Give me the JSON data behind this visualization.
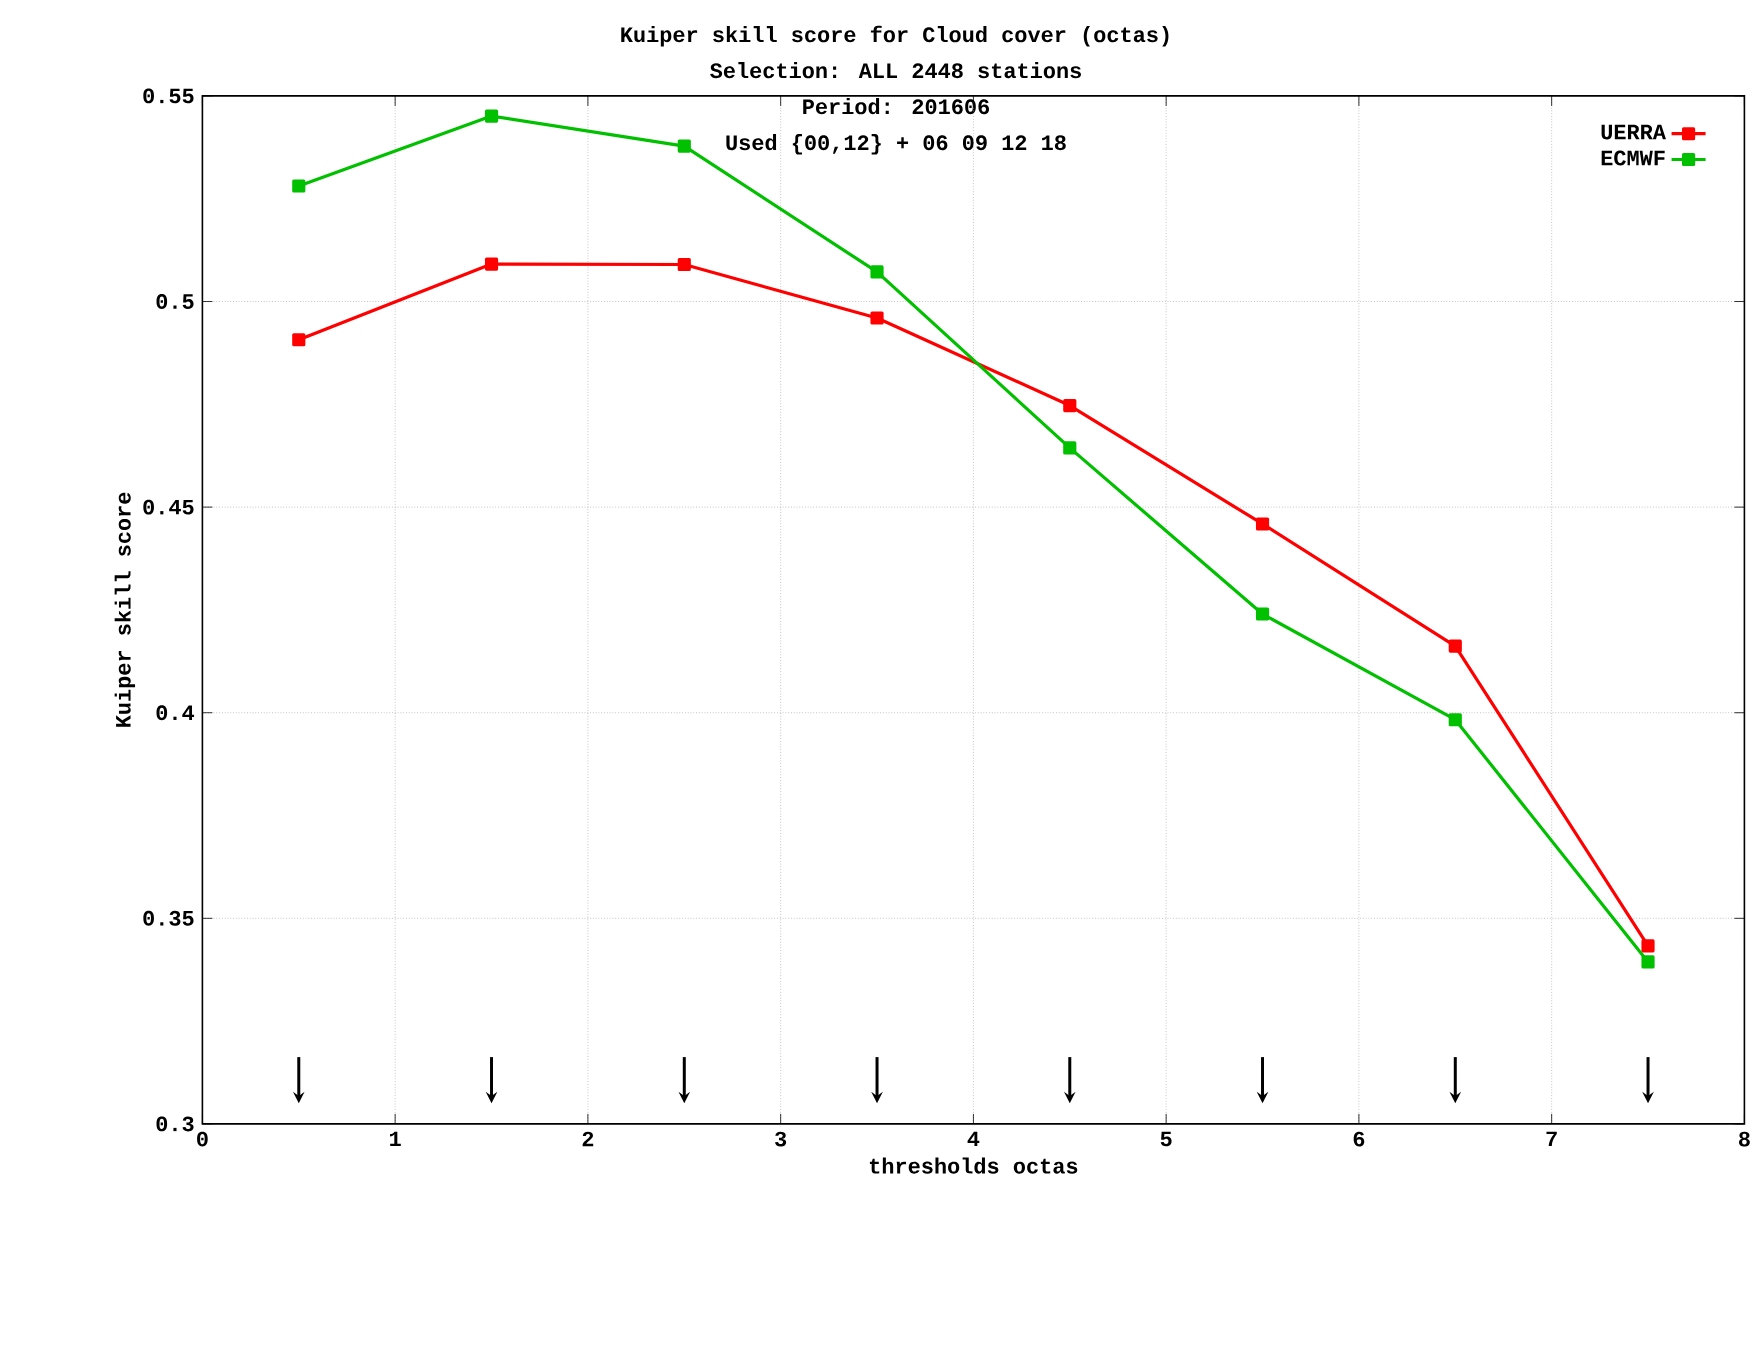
{
  "chart_data": {
    "type": "line",
    "title": "Kuiper skill score  for Cloud cover (octas)",
    "subtitle": "Selection: ALL   2448 stations",
    "annotations": [
      "Period:   201606",
      "Used {00,12} + 06 09 12 18"
    ],
    "xlabel": "thresholds octas",
    "ylabel": "Kuiper skill score",
    "x": [
      0.5,
      1.5,
      2.5,
      3.5,
      4.5,
      5.5,
      6.5,
      7.5
    ],
    "series": [
      {
        "name": "UERRA",
        "color": "#ff0000",
        "values": [
          0.4907,
          0.5091,
          0.509,
          0.496,
          0.4747,
          0.4459,
          0.4162,
          0.3433
        ]
      },
      {
        "name": "ECMWF",
        "color": "#00c000",
        "values": [
          0.5281,
          0.5451,
          0.5378,
          0.5072,
          0.4644,
          0.424,
          0.3983,
          0.3394
        ]
      }
    ],
    "xlim": [
      0,
      8
    ],
    "xticks": [
      0,
      1,
      2,
      3,
      4,
      5,
      6,
      7,
      8
    ],
    "ylim": [
      0.3,
      0.55
    ],
    "yticks": [
      0.3,
      0.35,
      0.4,
      0.45,
      0.5,
      0.55
    ],
    "grid": true,
    "legend": "top right",
    "marker": "square",
    "line_style": "solid"
  }
}
